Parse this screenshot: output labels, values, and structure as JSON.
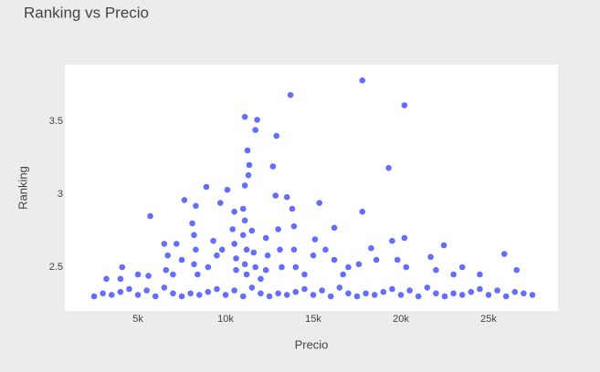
{
  "chart_data": {
    "type": "scatter",
    "title": "Ranking vs Precio",
    "x_label": "Precio",
    "y_label": "Ranking",
    "color": "#636efa",
    "xlim": [
      830,
      28960
    ],
    "ylim": [
      2.2,
      3.8875
    ],
    "xticks": [
      {
        "value": 5000,
        "label": "5k"
      },
      {
        "value": 10000,
        "label": "10k"
      },
      {
        "value": 15000,
        "label": "15k"
      },
      {
        "value": 20000,
        "label": "20k"
      },
      {
        "value": 25000,
        "label": "25k"
      }
    ],
    "yticks": [
      2.5,
      3,
      3.5
    ],
    "x": [
      13700,
      17800,
      20200,
      11100,
      11800,
      11700,
      12900,
      11250,
      11350,
      11300,
      12700,
      19300,
      8900,
      10100,
      11100,
      12850,
      13500,
      15350,
      7650,
      9700,
      17800,
      5700,
      16200,
      20200,
      19500,
      22450,
      25900,
      26600,
      15100,
      8100,
      8300,
      8200,
      8300,
      8200,
      8400,
      10500,
      10400,
      10500,
      10600,
      10600,
      11000,
      11100,
      11000,
      11200,
      11100,
      11200,
      11500,
      11600,
      11700,
      12300,
      12400,
      12300,
      13000,
      13100,
      13200,
      13800,
      13900,
      13900,
      14000,
      6500,
      6700,
      6600,
      7200,
      7500,
      7000,
      9300,
      9500,
      9000,
      9800,
      4100,
      4000,
      5000,
      5600,
      3200,
      15000,
      15700,
      16200,
      17000,
      17600,
      18300,
      18600,
      19800,
      20300,
      21700,
      22000,
      23000,
      23500,
      24500,
      16700,
      14500,
      12000,
      2500,
      3000,
      3500,
      4000,
      4500,
      5000,
      5500,
      6000,
      6500,
      7000,
      7500,
      8000,
      8500,
      9000,
      9500,
      10000,
      10500,
      11000,
      11500,
      12000,
      12500,
      13000,
      13500,
      14000,
      14500,
      15000,
      15500,
      16000,
      16500,
      17000,
      17500,
      18000,
      18500,
      19000,
      19500,
      20000,
      20500,
      21000,
      21500,
      22000,
      22500,
      23000,
      23500,
      24000,
      24500,
      25000,
      25500,
      26000,
      26500,
      27000,
      27500
    ],
    "values": [
      3.68,
      3.78,
      3.61,
      3.53,
      3.51,
      3.44,
      3.4,
      3.3,
      3.2,
      3.13,
      3.19,
      3.18,
      3.05,
      3.03,
      3.06,
      2.99,
      2.98,
      2.94,
      2.96,
      2.94,
      2.88,
      2.85,
      2.77,
      2.7,
      2.68,
      2.65,
      2.59,
      2.48,
      2.69,
      2.8,
      2.92,
      2.72,
      2.62,
      2.52,
      2.45,
      2.88,
      2.76,
      2.66,
      2.56,
      2.48,
      2.9,
      2.82,
      2.72,
      2.62,
      2.52,
      2.45,
      2.75,
      2.6,
      2.5,
      2.7,
      2.58,
      2.48,
      2.76,
      2.62,
      2.5,
      2.9,
      2.78,
      2.62,
      2.5,
      2.66,
      2.58,
      2.48,
      2.66,
      2.55,
      2.45,
      2.68,
      2.58,
      2.5,
      2.62,
      2.5,
      2.42,
      2.45,
      2.44,
      2.42,
      2.58,
      2.62,
      2.55,
      2.5,
      2.52,
      2.63,
      2.55,
      2.55,
      2.5,
      2.57,
      2.48,
      2.45,
      2.5,
      2.45,
      2.45,
      2.45,
      2.42,
      2.3,
      2.32,
      2.31,
      2.33,
      2.35,
      2.31,
      2.34,
      2.3,
      2.36,
      2.32,
      2.3,
      2.32,
      2.31,
      2.33,
      2.35,
      2.31,
      2.34,
      2.3,
      2.36,
      2.32,
      2.3,
      2.32,
      2.31,
      2.33,
      2.35,
      2.31,
      2.34,
      2.3,
      2.36,
      2.32,
      2.3,
      2.32,
      2.31,
      2.33,
      2.35,
      2.31,
      2.34,
      2.3,
      2.36,
      2.32,
      2.3,
      2.32,
      2.31,
      2.33,
      2.35,
      2.31,
      2.34,
      2.3,
      2.33,
      2.32,
      2.31
    ]
  }
}
